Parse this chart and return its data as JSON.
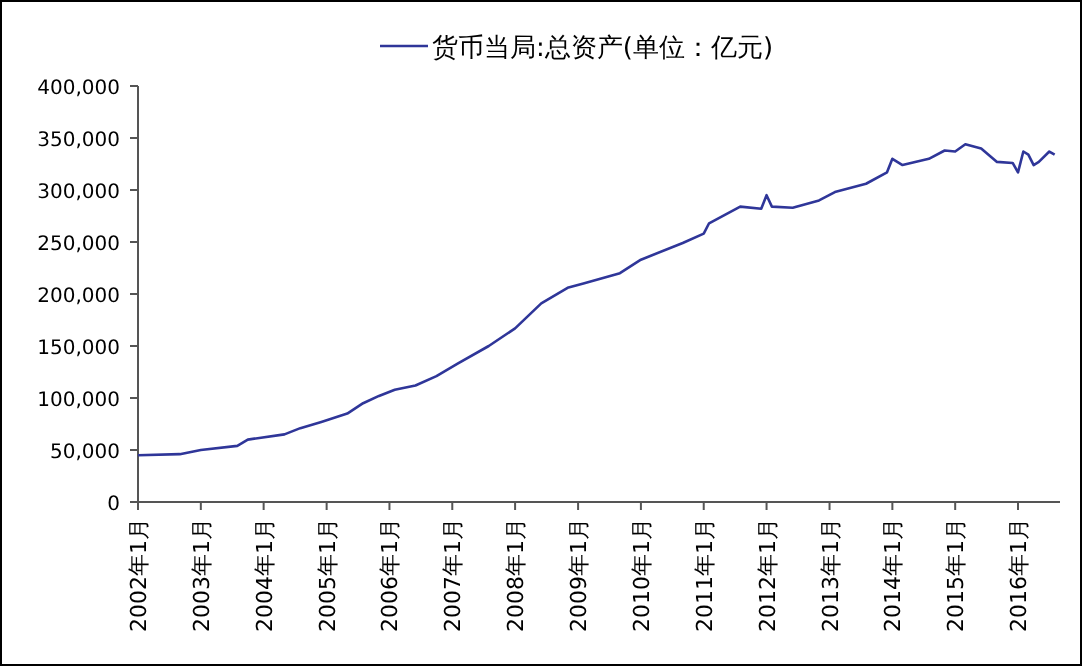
{
  "chart_data": {
    "type": "line",
    "legend": "top",
    "x": [
      "2002-01",
      "2002-09",
      "2003-01",
      "2003-08",
      "2003-10",
      "2004-05",
      "2004-08",
      "2004-12",
      "2005-05",
      "2005-08",
      "2005-11",
      "2006-02",
      "2006-06",
      "2006-10",
      "2007-02",
      "2007-08",
      "2008-01",
      "2008-06",
      "2008-11",
      "2009-02",
      "2009-07",
      "2009-09",
      "2010-01",
      "2010-09",
      "2011-01",
      "2011-02",
      "2011-08",
      "2011-12",
      "2012-01",
      "2012-02",
      "2012-06",
      "2012-11",
      "2013-02",
      "2013-08",
      "2013-12",
      "2014-01",
      "2014-03",
      "2014-08",
      "2014-11",
      "2015-01",
      "2015-03",
      "2015-06",
      "2015-09",
      "2015-12",
      "2016-01",
      "2016-02",
      "2016-03",
      "2016-04",
      "2016-05",
      "2016-07",
      "2016-08"
    ],
    "series": [
      {
        "name": "货币当局:总资产(单位：亿元)",
        "color": "#2f3699",
        "values": [
          45000,
          46000,
          50000,
          54000,
          60000,
          65000,
          71000,
          77000,
          85000,
          95000,
          102000,
          108000,
          112000,
          121000,
          133000,
          150000,
          167000,
          191000,
          206000,
          210000,
          217000,
          220000,
          233000,
          249000,
          258000,
          268000,
          284000,
          282000,
          295000,
          284000,
          283000,
          290000,
          298000,
          306000,
          317000,
          330000,
          324000,
          330000,
          338000,
          337000,
          344000,
          340000,
          327000,
          326000,
          317000,
          337000,
          334000,
          324000,
          327000,
          337000,
          334000
        ]
      }
    ],
    "xlim": [
      "2002-01",
      "2016-09"
    ],
    "xticks": [
      {
        "value": "2002-01",
        "label": "2002年1月"
      },
      {
        "value": "2003-01",
        "label": "2003年1月"
      },
      {
        "value": "2004-01",
        "label": "2004年1月"
      },
      {
        "value": "2005-01",
        "label": "2005年1月"
      },
      {
        "value": "2006-01",
        "label": "2006年1月"
      },
      {
        "value": "2007-01",
        "label": "2007年1月"
      },
      {
        "value": "2008-01",
        "label": "2008年1月"
      },
      {
        "value": "2009-01",
        "label": "2009年1月"
      },
      {
        "value": "2010-01",
        "label": "2010年1月"
      },
      {
        "value": "2011-01",
        "label": "2011年1月"
      },
      {
        "value": "2012-01",
        "label": "2012年1月"
      },
      {
        "value": "2013-01",
        "label": "2013年1月"
      },
      {
        "value": "2014-01",
        "label": "2014年1月"
      },
      {
        "value": "2015-01",
        "label": "2015年1月"
      },
      {
        "value": "2016-01",
        "label": "2016年1月"
      }
    ],
    "ylim": [
      0,
      400000
    ],
    "yticks": [
      0,
      {
        "value": 50000,
        "label": "50,000"
      },
      {
        "value": 100000,
        "label": "100,000"
      },
      {
        "value": 150000,
        "label": "150,000"
      },
      {
        "value": 200000,
        "label": "200,000"
      },
      {
        "value": 250000,
        "label": "250,000"
      },
      {
        "value": 300000,
        "label": "300,000"
      },
      {
        "value": 350000,
        "label": "350,000"
      },
      {
        "value": 400000,
        "label": "400,000"
      }
    ]
  }
}
